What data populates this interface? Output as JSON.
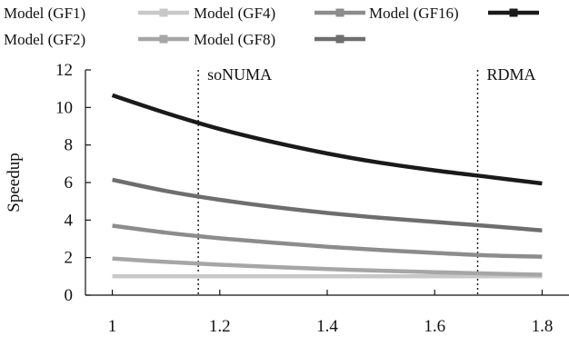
{
  "chart_data": {
    "type": "line",
    "title": "",
    "xlabel": "",
    "ylabel": "Speedup",
    "xlim": [
      0.95,
      1.85
    ],
    "ylim": [
      0,
      12
    ],
    "x_ticks": [
      "1",
      "1.2",
      "1.4",
      "1.6",
      "1.8"
    ],
    "y_ticks": [
      "0",
      "2",
      "4",
      "6",
      "8",
      "10",
      "12"
    ],
    "grid": false,
    "legend_position": "top",
    "x": [
      1.0,
      1.1,
      1.2,
      1.3,
      1.4,
      1.5,
      1.6,
      1.7,
      1.8
    ],
    "series": [
      {
        "name": "Model (GF1)",
        "color": "#c8c8c8",
        "values": [
          1.0,
          1.0,
          1.0,
          1.0,
          1.0,
          1.0,
          1.0,
          1.0,
          1.0
        ]
      },
      {
        "name": "Model (GF2)",
        "color": "#a6a6a6",
        "values": [
          1.95,
          1.77,
          1.62,
          1.5,
          1.39,
          1.3,
          1.22,
          1.15,
          1.09
        ]
      },
      {
        "name": "Model (GF4)",
        "color": "#8c8c8c",
        "values": [
          3.7,
          3.33,
          3.03,
          2.79,
          2.58,
          2.4,
          2.25,
          2.12,
          2.05
        ]
      },
      {
        "name": "Model (GF8)",
        "color": "#6e6e6e",
        "values": [
          6.15,
          5.55,
          5.08,
          4.7,
          4.38,
          4.12,
          3.9,
          3.68,
          3.45
        ]
      },
      {
        "name": "Model (GF16)",
        "color": "#1a1a1a",
        "values": [
          10.65,
          9.7,
          8.85,
          8.15,
          7.55,
          7.05,
          6.65,
          6.3,
          5.95
        ]
      }
    ],
    "annotations": [
      {
        "x": 1.16,
        "label": "soNUMA",
        "style": "dotted-vertical-line"
      },
      {
        "x": 1.68,
        "label": "RDMA",
        "style": "dotted-vertical-line"
      }
    ]
  }
}
